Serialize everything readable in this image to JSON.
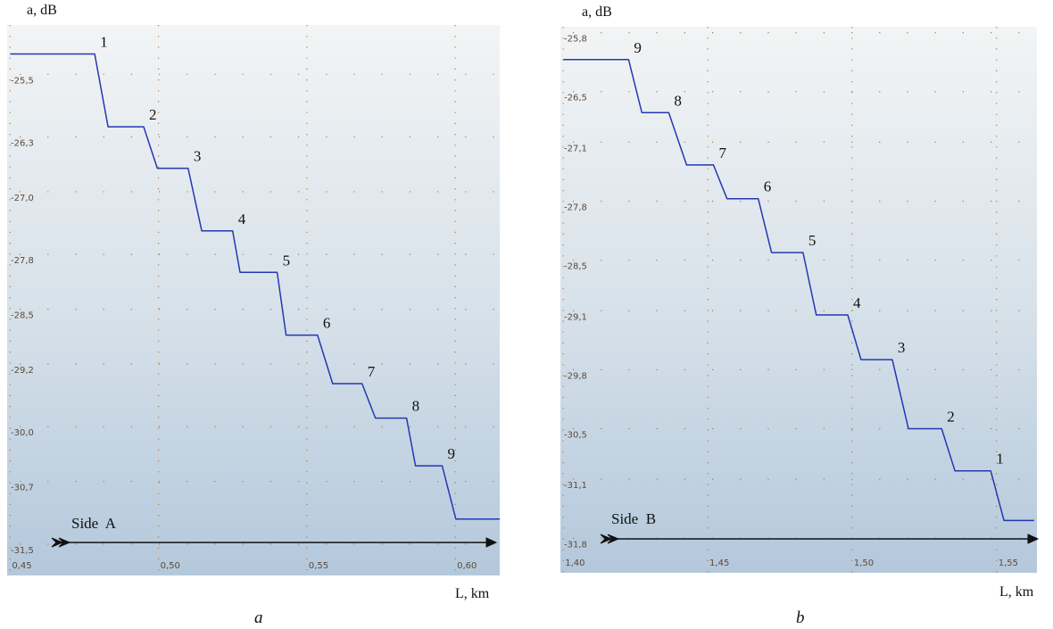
{
  "chart_data": [
    {
      "type": "line",
      "panel_label": "a",
      "x_label": "L, km",
      "y_label": "a, dB",
      "side_label": "Side  A",
      "xlim": [
        0.449,
        0.615
      ],
      "ylim": [
        -31.9,
        -24.87
      ],
      "grid": true,
      "xticks": [
        {
          "value": 0.45,
          "label": "0,45"
        },
        {
          "value": 0.5,
          "label": "0,50"
        },
        {
          "value": 0.55,
          "label": "0,55"
        },
        {
          "value": 0.6,
          "label": "0,60"
        }
      ],
      "yticks": [
        {
          "value": -25.5,
          "label": "-25,5"
        },
        {
          "value": -26.3,
          "label": "-26,3"
        },
        {
          "value": -27.0,
          "label": "-27,0"
        },
        {
          "value": -27.8,
          "label": "-27,8"
        },
        {
          "value": -28.5,
          "label": "-28,5"
        },
        {
          "value": -29.2,
          "label": "-29,2"
        },
        {
          "value": -30.0,
          "label": "-30,0"
        },
        {
          "value": -30.7,
          "label": "-30,7"
        },
        {
          "value": -31.5,
          "label": "-31,5"
        }
      ],
      "series": [
        {
          "color": "#2438b0",
          "x": [
            0.45,
            0.4785,
            0.483,
            0.495,
            0.4996,
            0.51,
            0.5146,
            0.525,
            0.5275,
            0.54,
            0.543,
            0.5536,
            0.5587,
            0.5686,
            0.5731,
            0.5836,
            0.5866,
            0.5956,
            0.6002,
            0.615
          ],
          "values": [
            -25.24,
            -25.24,
            -26.17,
            -26.17,
            -26.7,
            -26.7,
            -27.5,
            -27.5,
            -28.03,
            -28.03,
            -28.83,
            -28.83,
            -29.45,
            -29.45,
            -29.89,
            -29.89,
            -30.5,
            -30.5,
            -31.18,
            -31.18
          ]
        }
      ],
      "step_labels": [
        "1",
        "2",
        "3",
        "4",
        "5",
        "6",
        "7",
        "8",
        "9"
      ]
    },
    {
      "type": "line",
      "panel_label": "b",
      "x_label": "L, km",
      "y_label": "a, dB",
      "side_label": "Side  B",
      "xlim": [
        1.399,
        1.564
      ],
      "ylim": [
        -32.21,
        -25.73
      ],
      "grid": true,
      "xticks": [
        {
          "value": 1.4,
          "label": "1,40"
        },
        {
          "value": 1.45,
          "label": "1,45"
        },
        {
          "value": 1.5,
          "label": "1,50"
        },
        {
          "value": 1.55,
          "label": "1,55"
        }
      ],
      "yticks": [
        {
          "value": -25.8,
          "label": "-25,8"
        },
        {
          "value": -26.5,
          "label": "-26,5"
        },
        {
          "value": -27.1,
          "label": "-27,1"
        },
        {
          "value": -27.8,
          "label": "-27,8"
        },
        {
          "value": -28.5,
          "label": "-28,5"
        },
        {
          "value": -29.1,
          "label": "-29,1"
        },
        {
          "value": -29.8,
          "label": "-29,8"
        },
        {
          "value": -30.5,
          "label": "-30,5"
        },
        {
          "value": -31.1,
          "label": "-31,1"
        },
        {
          "value": -31.8,
          "label": "-31,8"
        }
      ],
      "series": [
        {
          "color": "#2438b0",
          "x": [
            1.4,
            1.4226,
            1.4272,
            1.4365,
            1.4427,
            1.452,
            1.4567,
            1.4675,
            1.4721,
            1.483,
            1.4876,
            1.4985,
            1.5031,
            1.5139,
            1.5195,
            1.531,
            1.5356,
            1.548,
            1.5526,
            1.563
          ],
          "values": [
            -26.12,
            -26.12,
            -26.75,
            -26.75,
            -27.37,
            -27.37,
            -27.77,
            -27.77,
            -28.41,
            -28.41,
            -29.15,
            -29.15,
            -29.68,
            -29.68,
            -30.5,
            -30.5,
            -31.0,
            -31.0,
            -31.59,
            -31.59
          ]
        }
      ],
      "step_labels": [
        "9",
        "8",
        "7",
        "6",
        "5",
        "4",
        "3",
        "2",
        "1"
      ]
    }
  ]
}
